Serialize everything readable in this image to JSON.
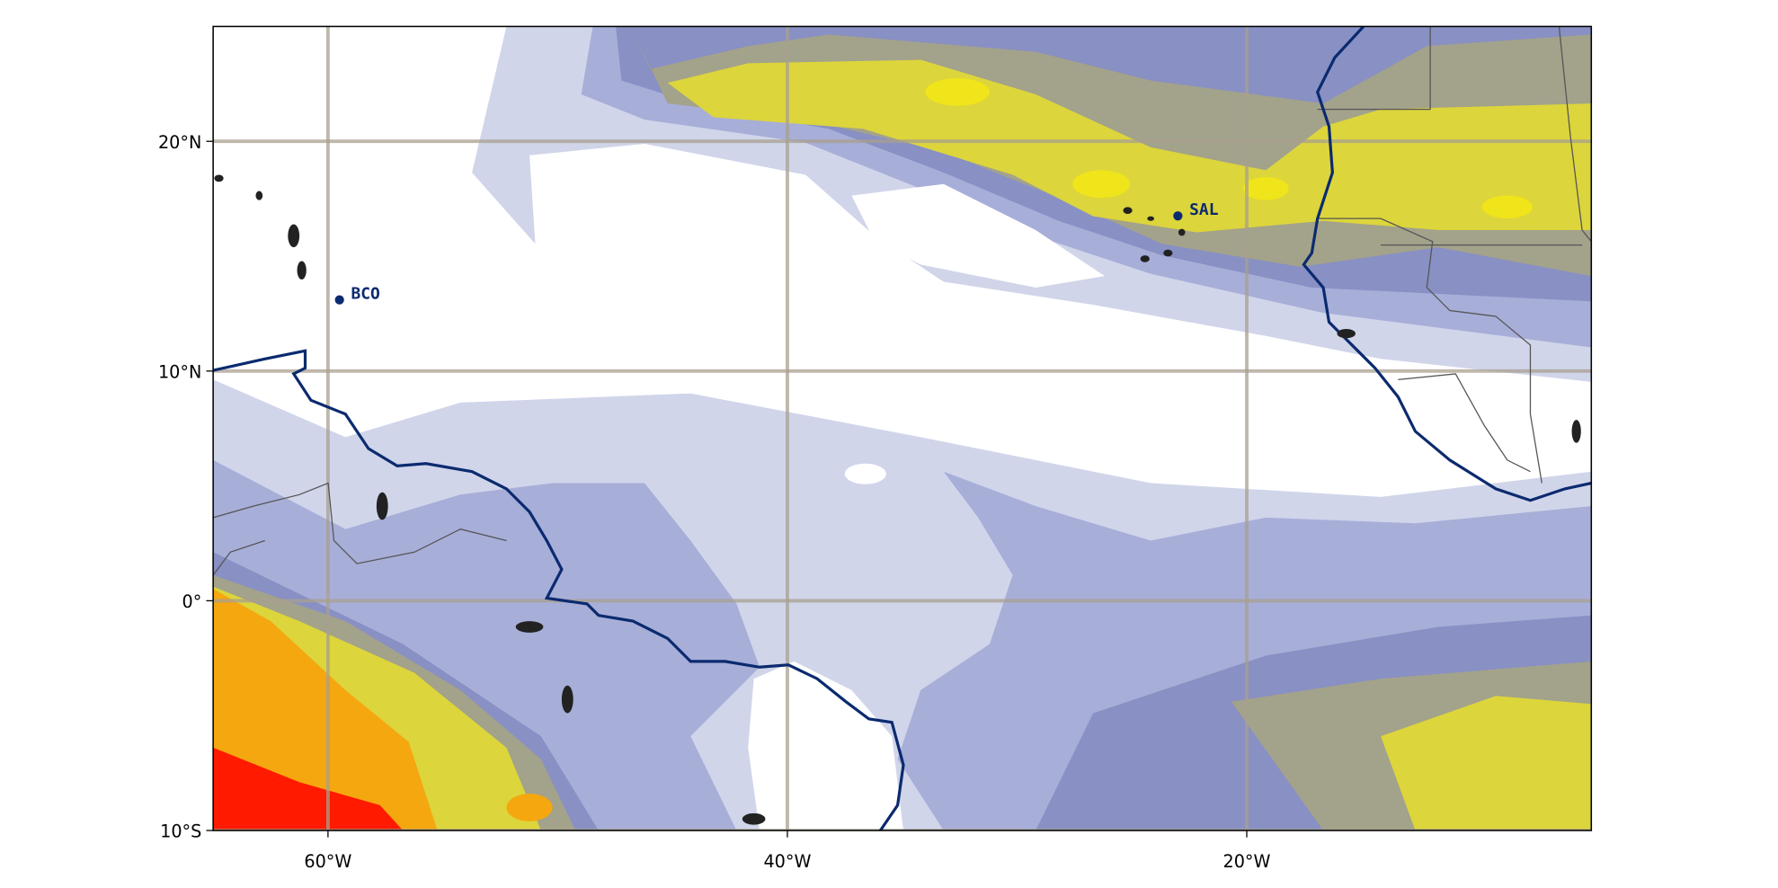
{
  "map": {
    "xlim": [
      -65,
      -5
    ],
    "ylim": [
      -10,
      25
    ],
    "xticks": [
      {
        "value": -60,
        "label": "60°W"
      },
      {
        "value": -40,
        "label": "40°W"
      },
      {
        "value": -20,
        "label": "20°W"
      }
    ],
    "yticks": [
      {
        "value": 20,
        "label": "20°N"
      },
      {
        "value": 10,
        "label": "10°N"
      },
      {
        "value": 0,
        "label": "0°"
      },
      {
        "value": -10,
        "label": "10°S"
      }
    ],
    "grid": true,
    "stations": [
      {
        "name": "BCO",
        "lon": -59.5,
        "lat": 13.1
      },
      {
        "name": "SAL",
        "lon": -23,
        "lat": 16.75
      }
    ]
  }
}
